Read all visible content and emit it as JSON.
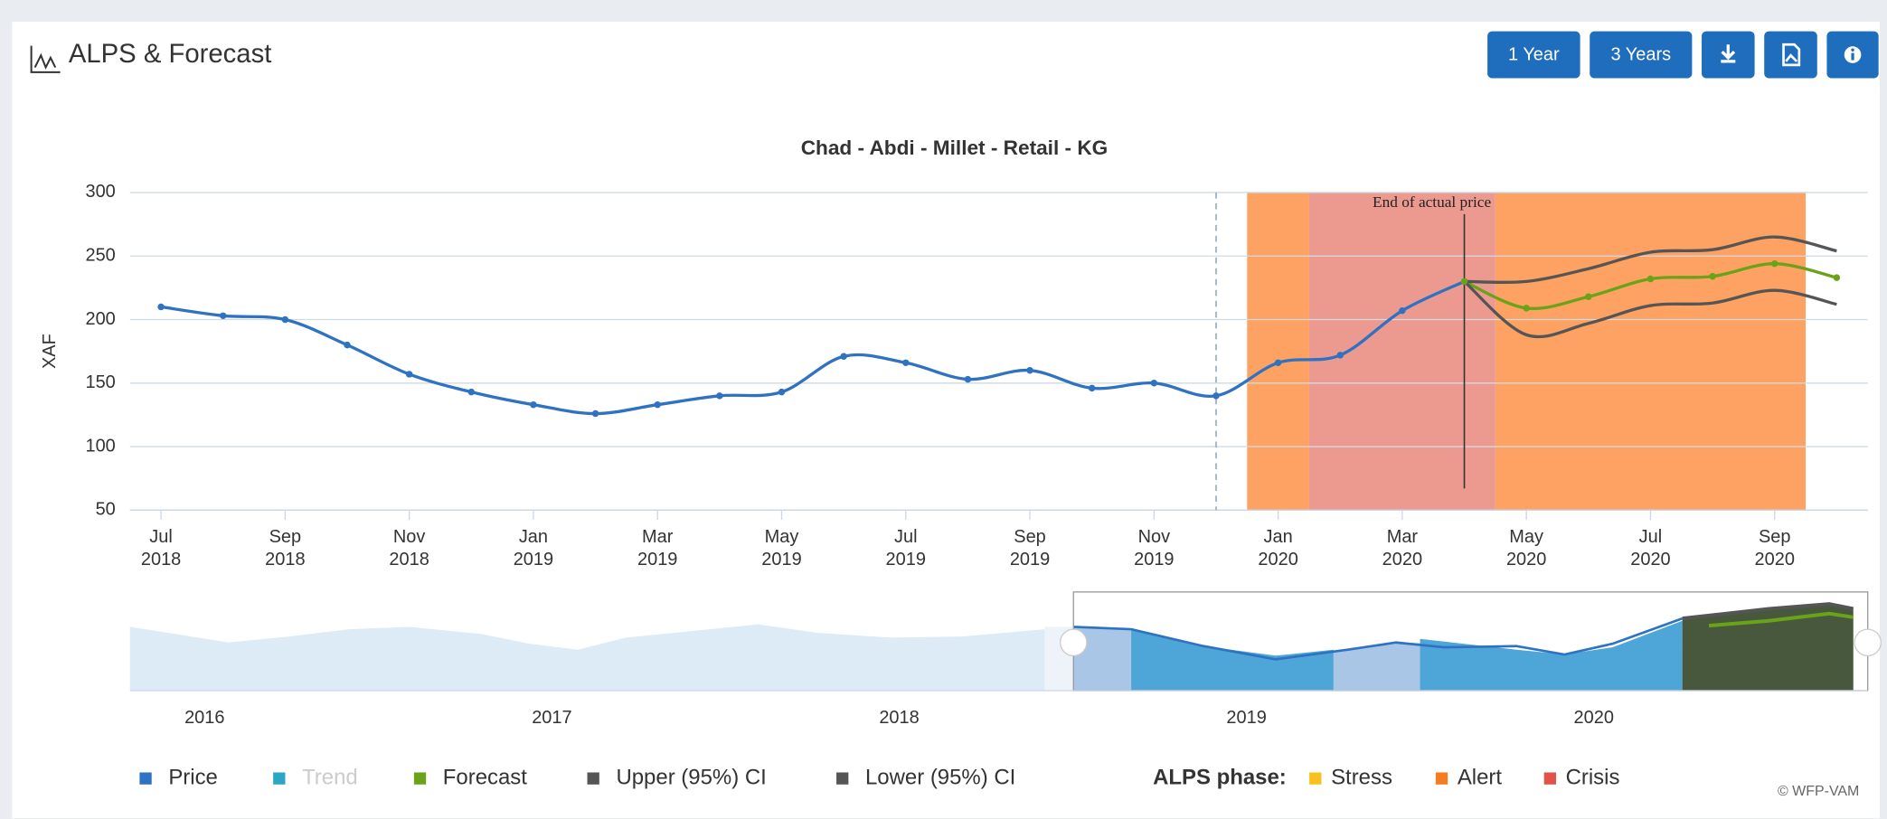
{
  "header": {
    "title": "ALPS & Forecast",
    "buttons": [
      "1 Year",
      "3 Years"
    ]
  },
  "chart_data": {
    "type": "line",
    "title": "Chad - Abdi - Millet - Retail - KG",
    "y_label": "XAF",
    "x": [
      "2018-07",
      "2018-08",
      "2018-09",
      "2018-10",
      "2018-11",
      "2018-12",
      "2019-01",
      "2019-02",
      "2019-03",
      "2019-04",
      "2019-05",
      "2019-06",
      "2019-07",
      "2019-08",
      "2019-09",
      "2019-10",
      "2019-11",
      "2019-12",
      "2020-01",
      "2020-02",
      "2020-03",
      "2020-04",
      "2020-05",
      "2020-06",
      "2020-07",
      "2020-08",
      "2020-09",
      "2020-10"
    ],
    "xticks": [
      {
        "value": "2018-07",
        "label": [
          "Jul",
          "2018"
        ]
      },
      {
        "value": "2018-09",
        "label": [
          "Sep",
          "2018"
        ]
      },
      {
        "value": "2018-11",
        "label": [
          "Nov",
          "2018"
        ]
      },
      {
        "value": "2019-01",
        "label": [
          "Jan",
          "2019"
        ]
      },
      {
        "value": "2019-03",
        "label": [
          "Mar",
          "2019"
        ]
      },
      {
        "value": "2019-05",
        "label": [
          "May",
          "2019"
        ]
      },
      {
        "value": "2019-07",
        "label": [
          "Jul",
          "2019"
        ]
      },
      {
        "value": "2019-09",
        "label": [
          "Sep",
          "2019"
        ]
      },
      {
        "value": "2019-11",
        "label": [
          "Nov",
          "2019"
        ]
      },
      {
        "value": "2020-01",
        "label": [
          "Jan",
          "2020"
        ]
      },
      {
        "value": "2020-03",
        "label": [
          "Mar",
          "2020"
        ]
      },
      {
        "value": "2020-05",
        "label": [
          "May",
          "2020"
        ]
      },
      {
        "value": "2020-07",
        "label": [
          "Jul",
          "2020"
        ]
      },
      {
        "value": "2020-09",
        "label": [
          "Sep",
          "2020"
        ]
      }
    ],
    "ylim": [
      50,
      300
    ],
    "yticks": [
      50,
      100,
      150,
      200,
      250,
      300
    ],
    "grid": true,
    "series": [
      {
        "name": "Price",
        "color": "#2f72c2",
        "markers": true,
        "visible": true,
        "values": [
          210,
          203,
          200,
          180,
          157,
          143,
          133,
          126,
          133,
          140,
          143,
          171,
          166,
          153,
          160,
          146,
          150,
          140,
          166,
          172,
          207,
          230,
          null,
          null,
          null,
          null,
          null,
          null
        ]
      },
      {
        "name": "Trend",
        "color": "#2ba7c6",
        "markers": false,
        "visible": false,
        "values": [
          null,
          null,
          null,
          null,
          null,
          null,
          null,
          null,
          null,
          null,
          null,
          null,
          null,
          null,
          null,
          null,
          null,
          null,
          null,
          null,
          null,
          null,
          null,
          null,
          null,
          null,
          null,
          null
        ]
      },
      {
        "name": "Forecast",
        "color": "#6aa318",
        "markers": true,
        "visible": true,
        "values": [
          null,
          null,
          null,
          null,
          null,
          null,
          null,
          null,
          null,
          null,
          null,
          null,
          null,
          null,
          null,
          null,
          null,
          null,
          null,
          null,
          null,
          230,
          209,
          218,
          232,
          234,
          244,
          233
        ]
      },
      {
        "name": "Upper (95%) CI",
        "color": "#555555",
        "markers": false,
        "visible": true,
        "values": [
          null,
          null,
          null,
          null,
          null,
          null,
          null,
          null,
          null,
          null,
          null,
          null,
          null,
          null,
          null,
          null,
          null,
          null,
          null,
          null,
          null,
          230,
          230,
          240,
          253,
          255,
          265,
          254
        ]
      },
      {
        "name": "Lower (95%) CI",
        "color": "#555555",
        "markers": false,
        "visible": true,
        "values": [
          null,
          null,
          null,
          null,
          null,
          null,
          null,
          null,
          null,
          null,
          null,
          null,
          null,
          null,
          null,
          null,
          null,
          null,
          null,
          null,
          null,
          230,
          188,
          197,
          211,
          213,
          223,
          212
        ]
      }
    ],
    "phase_title": "ALPS phase:",
    "phases": [
      {
        "name": "Stress",
        "color": "#f8c21c",
        "band_color": "#fcd98a"
      },
      {
        "name": "Alert",
        "color": "#f57c1f",
        "band_color": "#fda262"
      },
      {
        "name": "Crisis",
        "color": "#e0524a",
        "band_color": "#ec9a90"
      }
    ],
    "bands": [
      {
        "phase": 1,
        "from": "2020-01",
        "to": "2020-01"
      },
      {
        "phase": 2,
        "from": "2020-02",
        "to": "2020-04"
      },
      {
        "phase": 1,
        "from": "2020-05",
        "to": "2020-09"
      }
    ],
    "dashed_line_at": "2019-12",
    "annotation": {
      "text": "End of actual price",
      "at": "2020-04"
    },
    "navigator_xticks": [
      "2016",
      "2017",
      "2018",
      "2019",
      "2020"
    ],
    "credit": "© WFP-VAM"
  }
}
